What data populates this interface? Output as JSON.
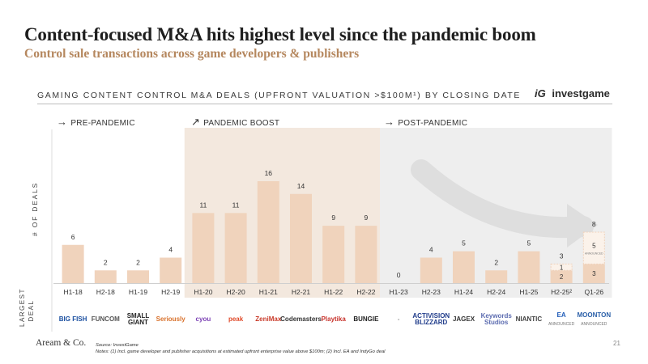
{
  "title": "Content-focused M&A hits highest level since the pandemic boom",
  "subtitle": "Control sale transactions across game developers & publishers",
  "chart_header": "GAMING CONTENT CONTROL M&A DEALS (UPFRONT VALUATION >$100M¹) BY CLOSING DATE",
  "brand": {
    "mark": "iG",
    "name": "investgame"
  },
  "periods": [
    {
      "label": "PRE-PANDEMIC",
      "arrow": "→",
      "color": "#ffffff"
    },
    {
      "label": "PANDEMIC BOOST",
      "arrow": "↗",
      "color": "#f3e8de"
    },
    {
      "label": "POST-PANDEMIC",
      "arrow": "→",
      "color": "#eeeeee"
    }
  ],
  "y_axis_label": "# OF DEALS",
  "largest_deal_label": "LARGEST DEAL",
  "chart_data": {
    "type": "bar",
    "categories": [
      "H1-18",
      "H2-18",
      "H1-19",
      "H2-19",
      "H1-20",
      "H2-20",
      "H1-21",
      "H2-21",
      "H1-22",
      "H2-22",
      "H1-23",
      "H2-23",
      "H1-24",
      "H2-24",
      "H1-25",
      "H2-25",
      "Q1-26"
    ],
    "category_display": [
      "H1-18",
      "H2-18",
      "H1-19",
      "H2-19",
      "H1-20",
      "H2-20",
      "H1-21",
      "H2-21",
      "H1-22",
      "H2-22",
      "H1-23",
      "H2-23",
      "H1-24",
      "H2-24",
      "H1-25",
      "H2-25²",
      "Q1-26"
    ],
    "values": [
      6,
      2,
      2,
      4,
      11,
      11,
      16,
      14,
      9,
      9,
      0,
      4,
      5,
      2,
      5,
      3,
      8
    ],
    "period_index": [
      0,
      0,
      0,
      0,
      1,
      1,
      1,
      1,
      1,
      1,
      2,
      2,
      2,
      2,
      2,
      2,
      2
    ],
    "stacked": [
      {
        "index": 15,
        "completed": 2,
        "announced": 1
      },
      {
        "index": 16,
        "completed": 3,
        "announced": 5,
        "announced_label": "ANNOUNCED"
      }
    ],
    "bar_color": "#f0d3bc",
    "ylim": [
      0,
      18
    ]
  },
  "largest_deals": [
    "BIG FISH",
    "FUNCOM",
    "SMALL GIANT",
    "Seriously",
    "cyou",
    "peak",
    "ZeniMax",
    "Codemasters",
    "Playtika",
    "BUNGIE",
    "-",
    "ACTIVISION BLIZZARD",
    "JAGEX",
    "Keywords Studios",
    "NIANTIC",
    "EA",
    "MOONTON"
  ],
  "largest_deals_sub": [
    "",
    "",
    "",
    "",
    "",
    "",
    "",
    "",
    "",
    "",
    "",
    "",
    "",
    "",
    "",
    "ANNOUNCED",
    "ANNOUNCED"
  ],
  "footer": {
    "brand": "Aream & Co.",
    "source": "Source: InvestGame",
    "notes": "Notes: (1) Incl. game developer and publisher acquisitions at estimated upfront enterprise value above $100m; (2) Incl. EA and IndyGo deal",
    "page": "21"
  }
}
